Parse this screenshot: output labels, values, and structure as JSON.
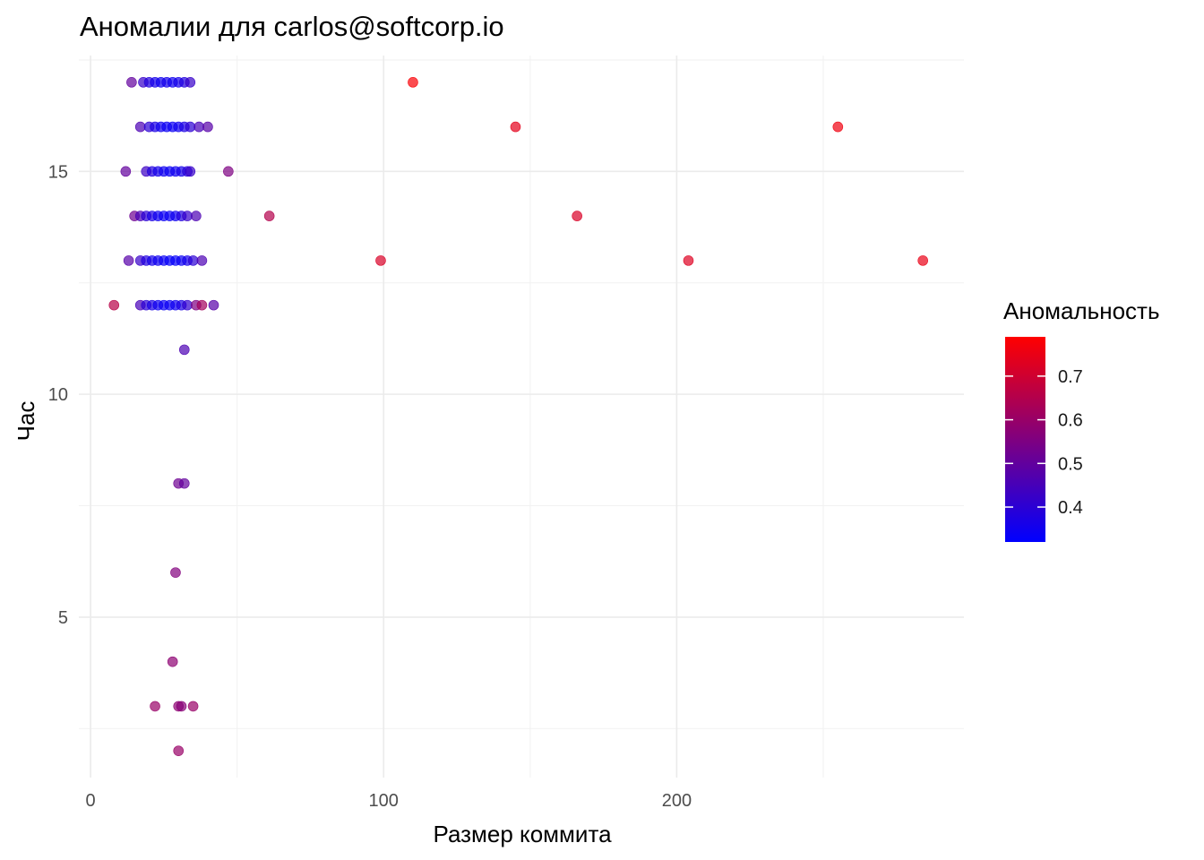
{
  "chart_data": {
    "type": "scatter",
    "title": "Аномалии для carlos@softcorp.io",
    "xlabel": "Размер коммита",
    "ylabel": "Час",
    "xlim": [
      -4,
      298
    ],
    "ylim": [
      1.4,
      17.6
    ],
    "x_major_ticks": [
      0,
      100,
      200
    ],
    "x_minor_ticks": [
      50,
      150,
      250
    ],
    "y_major_ticks": [
      5,
      10,
      15
    ],
    "y_minor_ticks": [
      2.5,
      7.5,
      12.5,
      17.5
    ],
    "x_tick_labels": [
      "0",
      "100",
      "200"
    ],
    "y_tick_labels": [
      "5",
      "10",
      "15"
    ],
    "grid": true,
    "legend": {
      "title": "Аномальность",
      "position": "right",
      "range": [
        0.32,
        0.79
      ],
      "breaks": [
        0.4,
        0.5,
        0.6,
        0.7
      ],
      "labels": [
        "0.4",
        "0.5",
        "0.6",
        "0.7"
      ],
      "low_color": "#0000ff",
      "high_color": "#ff0000"
    },
    "point_colors": {
      "low": "#0000ff",
      "high": "#ff0000",
      "opacity": 0.7
    },
    "points": [
      {
        "x": 14,
        "y": 17,
        "a": 0.5
      },
      {
        "x": 18,
        "y": 17,
        "a": 0.42
      },
      {
        "x": 20,
        "y": 17,
        "a": 0.38
      },
      {
        "x": 22,
        "y": 17,
        "a": 0.36
      },
      {
        "x": 24,
        "y": 17,
        "a": 0.35
      },
      {
        "x": 26,
        "y": 17,
        "a": 0.36
      },
      {
        "x": 28,
        "y": 17,
        "a": 0.35
      },
      {
        "x": 30,
        "y": 17,
        "a": 0.36
      },
      {
        "x": 32,
        "y": 17,
        "a": 0.38
      },
      {
        "x": 34,
        "y": 17,
        "a": 0.42
      },
      {
        "x": 110,
        "y": 17,
        "a": 0.78
      },
      {
        "x": 17,
        "y": 16,
        "a": 0.46
      },
      {
        "x": 20,
        "y": 16,
        "a": 0.4
      },
      {
        "x": 22,
        "y": 16,
        "a": 0.37
      },
      {
        "x": 24,
        "y": 16,
        "a": 0.35
      },
      {
        "x": 26,
        "y": 16,
        "a": 0.34
      },
      {
        "x": 28,
        "y": 16,
        "a": 0.34
      },
      {
        "x": 30,
        "y": 16,
        "a": 0.35
      },
      {
        "x": 32,
        "y": 16,
        "a": 0.37
      },
      {
        "x": 34,
        "y": 16,
        "a": 0.4
      },
      {
        "x": 37,
        "y": 16,
        "a": 0.45
      },
      {
        "x": 40,
        "y": 16,
        "a": 0.48
      },
      {
        "x": 145,
        "y": 16,
        "a": 0.74
      },
      {
        "x": 255,
        "y": 16,
        "a": 0.76
      },
      {
        "x": 12,
        "y": 15,
        "a": 0.5
      },
      {
        "x": 19,
        "y": 15,
        "a": 0.43
      },
      {
        "x": 21,
        "y": 15,
        "a": 0.38
      },
      {
        "x": 23,
        "y": 15,
        "a": 0.36
      },
      {
        "x": 25,
        "y": 15,
        "a": 0.35
      },
      {
        "x": 27,
        "y": 15,
        "a": 0.34
      },
      {
        "x": 29,
        "y": 15,
        "a": 0.35
      },
      {
        "x": 31,
        "y": 15,
        "a": 0.36
      },
      {
        "x": 33,
        "y": 15,
        "a": 0.39
      },
      {
        "x": 34,
        "y": 15,
        "a": 0.42
      },
      {
        "x": 47,
        "y": 15,
        "a": 0.55
      },
      {
        "x": 15,
        "y": 14,
        "a": 0.52
      },
      {
        "x": 17,
        "y": 14,
        "a": 0.45
      },
      {
        "x": 19,
        "y": 14,
        "a": 0.4
      },
      {
        "x": 21,
        "y": 14,
        "a": 0.37
      },
      {
        "x": 23,
        "y": 14,
        "a": 0.35
      },
      {
        "x": 25,
        "y": 14,
        "a": 0.34
      },
      {
        "x": 27,
        "y": 14,
        "a": 0.34
      },
      {
        "x": 29,
        "y": 14,
        "a": 0.35
      },
      {
        "x": 31,
        "y": 14,
        "a": 0.38
      },
      {
        "x": 33,
        "y": 14,
        "a": 0.42
      },
      {
        "x": 36,
        "y": 14,
        "a": 0.46
      },
      {
        "x": 61,
        "y": 14,
        "a": 0.65
      },
      {
        "x": 166,
        "y": 14,
        "a": 0.72
      },
      {
        "x": 13,
        "y": 13,
        "a": 0.48
      },
      {
        "x": 17,
        "y": 13,
        "a": 0.42
      },
      {
        "x": 19,
        "y": 13,
        "a": 0.38
      },
      {
        "x": 21,
        "y": 13,
        "a": 0.36
      },
      {
        "x": 23,
        "y": 13,
        "a": 0.35
      },
      {
        "x": 25,
        "y": 13,
        "a": 0.34
      },
      {
        "x": 27,
        "y": 13,
        "a": 0.33
      },
      {
        "x": 29,
        "y": 13,
        "a": 0.33
      },
      {
        "x": 31,
        "y": 13,
        "a": 0.34
      },
      {
        "x": 33,
        "y": 13,
        "a": 0.36
      },
      {
        "x": 35,
        "y": 13,
        "a": 0.4
      },
      {
        "x": 38,
        "y": 13,
        "a": 0.46
      },
      {
        "x": 99,
        "y": 13,
        "a": 0.72
      },
      {
        "x": 204,
        "y": 13,
        "a": 0.73
      },
      {
        "x": 284,
        "y": 13,
        "a": 0.75
      },
      {
        "x": 8,
        "y": 12,
        "a": 0.66
      },
      {
        "x": 17,
        "y": 12,
        "a": 0.45
      },
      {
        "x": 19,
        "y": 12,
        "a": 0.4
      },
      {
        "x": 21,
        "y": 12,
        "a": 0.37
      },
      {
        "x": 23,
        "y": 12,
        "a": 0.35
      },
      {
        "x": 25,
        "y": 12,
        "a": 0.34
      },
      {
        "x": 27,
        "y": 12,
        "a": 0.34
      },
      {
        "x": 29,
        "y": 12,
        "a": 0.35
      },
      {
        "x": 31,
        "y": 12,
        "a": 0.37
      },
      {
        "x": 33,
        "y": 12,
        "a": 0.41
      },
      {
        "x": 36,
        "y": 12,
        "a": 0.55
      },
      {
        "x": 38,
        "y": 12,
        "a": 0.62
      },
      {
        "x": 42,
        "y": 12,
        "a": 0.48
      },
      {
        "x": 32,
        "y": 11,
        "a": 0.46
      },
      {
        "x": 30,
        "y": 8,
        "a": 0.52
      },
      {
        "x": 32,
        "y": 8,
        "a": 0.5
      },
      {
        "x": 29,
        "y": 6,
        "a": 0.56
      },
      {
        "x": 28,
        "y": 4,
        "a": 0.58
      },
      {
        "x": 22,
        "y": 3,
        "a": 0.6
      },
      {
        "x": 30,
        "y": 3,
        "a": 0.58
      },
      {
        "x": 31,
        "y": 3,
        "a": 0.57
      },
      {
        "x": 35,
        "y": 3,
        "a": 0.6
      },
      {
        "x": 30,
        "y": 2,
        "a": 0.6
      }
    ]
  }
}
